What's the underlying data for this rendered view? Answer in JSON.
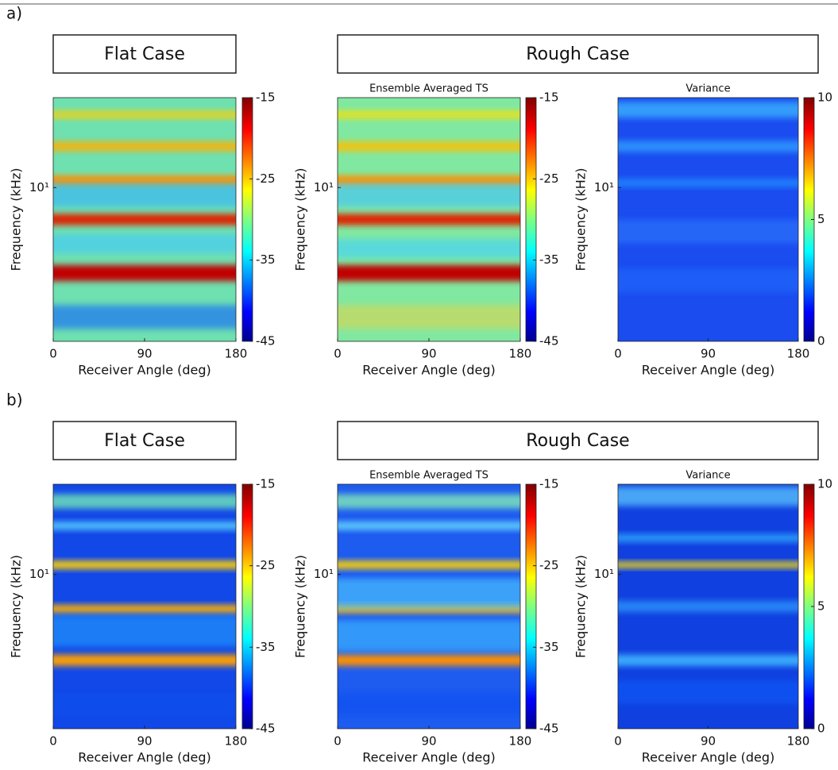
{
  "figure": {
    "panels": [
      {
        "label": "a)",
        "headers": [
          "Flat Case",
          "Rough Case"
        ]
      },
      {
        "label": "b)",
        "headers": [
          "Flat Case",
          "Rough Case"
        ]
      }
    ]
  },
  "chart_data": [
    {
      "type": "heatmap",
      "colormap": "jet",
      "xlabel": "Receiver Angle (deg)",
      "ylabel": "Frequency (kHz)",
      "xlim": [
        0,
        180
      ],
      "xticks": [
        0,
        90,
        180
      ],
      "yscale": "log",
      "ylim": [
        5,
        15
      ],
      "yticks": [
        {
          "value": 10,
          "label": "10¹"
        }
      ],
      "clim": [
        -45,
        -15
      ],
      "cticks": [
        -15,
        -25,
        -35,
        -45
      ]
    },
    {
      "type": "heatmap",
      "colormap": "jet",
      "title": "Ensemble Averaged TS",
      "xlabel": "Receiver Angle (deg)",
      "ylabel": "Frequency (kHz)",
      "xlim": [
        0,
        180
      ],
      "xticks": [
        0,
        90,
        180
      ],
      "yscale": "log",
      "ylim": [
        5,
        15
      ],
      "yticks": [
        {
          "value": 10,
          "label": "10¹"
        }
      ],
      "clim": [
        -45,
        -15
      ],
      "cticks": [
        -15,
        -25,
        -35,
        -45
      ]
    },
    {
      "type": "heatmap",
      "colormap": "jet",
      "title": "Variance",
      "xlabel": "Receiver Angle (deg)",
      "ylabel": "Frequency (kHz)",
      "xlim": [
        0,
        180
      ],
      "xticks": [
        0,
        90,
        180
      ],
      "yscale": "log",
      "ylim": [
        5,
        15
      ],
      "yticks": [
        {
          "value": 10,
          "label": "10¹"
        }
      ],
      "clim": [
        0,
        10
      ],
      "cticks": [
        0,
        5,
        10
      ]
    },
    {
      "type": "heatmap",
      "colormap": "jet",
      "xlabel": "Receiver Angle (deg)",
      "ylabel": "Frequency (kHz)",
      "xlim": [
        0,
        180
      ],
      "xticks": [
        0,
        90,
        180
      ],
      "yscale": "log",
      "ylim": [
        5,
        15
      ],
      "yticks": [
        {
          "value": 10,
          "label": "10¹"
        }
      ],
      "clim": [
        -45,
        -15
      ],
      "cticks": [
        -15,
        -25,
        -35,
        -45
      ]
    },
    {
      "type": "heatmap",
      "colormap": "jet",
      "title": "Ensemble Averaged TS",
      "xlabel": "Receiver Angle (deg)",
      "ylabel": "Frequency (kHz)",
      "xlim": [
        0,
        180
      ],
      "xticks": [
        0,
        90,
        180
      ],
      "yscale": "log",
      "ylim": [
        5,
        15
      ],
      "yticks": [
        {
          "value": 10,
          "label": "10¹"
        }
      ],
      "clim": [
        -45,
        -15
      ],
      "cticks": [
        -15,
        -25,
        -35,
        -45
      ]
    },
    {
      "type": "heatmap",
      "colormap": "jet",
      "title": "Variance",
      "xlabel": "Receiver Angle (deg)",
      "ylabel": "Frequency (kHz)",
      "xlim": [
        0,
        180
      ],
      "xticks": [
        0,
        90,
        180
      ],
      "yscale": "log",
      "ylim": [
        5,
        15
      ],
      "yticks": [
        {
          "value": 10,
          "label": "10¹"
        }
      ],
      "clim": [
        0,
        10
      ],
      "cticks": [
        0,
        5,
        10
      ]
    }
  ]
}
